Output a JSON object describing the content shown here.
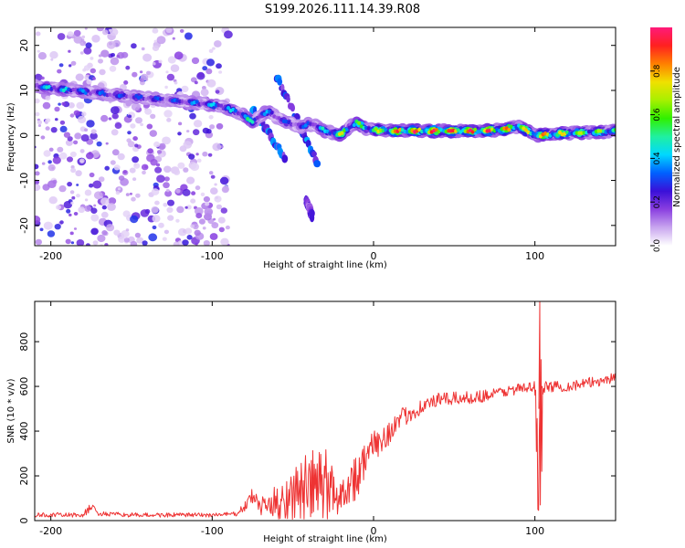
{
  "title": "S199.2026.111.14.39.R08",
  "chart_data": [
    {
      "type": "heatmap",
      "title": "S199.2026.111.14.39.R08",
      "xlabel": "Height of straight line (km)",
      "ylabel": "Frequency (Hz)",
      "xlim": [
        -210,
        150
      ],
      "ylim": [
        -24.5,
        24
      ],
      "x_ticks": [
        -200,
        -100,
        0,
        100
      ],
      "y_ticks": [
        20,
        10,
        0,
        -10,
        -20
      ],
      "colorbar": {
        "label": "Normalized spectral amplitude",
        "range": [
          0,
          1
        ],
        "ticks": [
          0.0,
          0.2,
          0.4,
          0.6,
          0.8
        ],
        "colormap": [
          "#ffffff",
          "#c9a6ef",
          "#8a3fe0",
          "#3a10d8",
          "#0060ff",
          "#00d8ff",
          "#20f0a0",
          "#30f000",
          "#a8f000",
          "#f0e000",
          "#ff8000",
          "#ff2020",
          "#ff1a7a"
        ]
      },
      "ridge": {
        "description": "dominant frequency track (Hz) vs height (km)",
        "x": [
          -210,
          -200,
          -180,
          -160,
          -140,
          -120,
          -100,
          -90,
          -80,
          -75,
          -70,
          -65,
          -60,
          -55,
          -50,
          -45,
          -40,
          -35,
          -30,
          -25,
          -20,
          -15,
          -10,
          -5,
          0,
          10,
          20,
          40,
          60,
          80,
          90,
          95,
          100,
          110,
          120,
          140,
          150
        ],
        "y": [
          11,
          10.5,
          9.8,
          9.0,
          8.3,
          7.6,
          6.8,
          6.0,
          4.5,
          3.0,
          4.5,
          5.5,
          4.0,
          3.0,
          2.5,
          2.0,
          2.5,
          2.0,
          1.0,
          0.5,
          0.2,
          2.0,
          3.0,
          1.5,
          1.2,
          1.0,
          1.0,
          1.0,
          1.0,
          1.2,
          2.0,
          1.0,
          0.0,
          0.2,
          0.5,
          0.8,
          1.0
        ]
      },
      "ridge_amplitude": [
        0.35,
        0.45,
        0.35,
        0.3,
        0.3,
        0.3,
        0.4,
        0.4,
        0.45,
        0.5,
        0.4,
        0.35,
        0.3,
        0.3,
        0.3,
        0.3,
        0.35,
        0.35,
        0.45,
        0.6,
        0.7,
        0.6,
        0.55,
        0.6,
        0.65,
        0.8,
        0.9,
        0.95,
        0.9,
        0.85,
        0.75,
        0.7,
        0.85,
        0.8,
        0.7,
        0.65,
        0.6
      ],
      "branches": [
        {
          "x": [
            -60,
            -35
          ],
          "y": [
            13,
            -6
          ],
          "amplitude": 0.3
        },
        {
          "x": [
            -75,
            -55
          ],
          "y": [
            6,
            -5
          ],
          "amplitude": 0.3
        },
        {
          "x": [
            -42,
            -38
          ],
          "y": [
            -14,
            -18
          ],
          "amplitude": 0.2
        }
      ],
      "noise_region": {
        "x": [
          -210,
          -90
        ],
        "y": [
          -24.5,
          24
        ],
        "amplitude_max": 0.25
      }
    },
    {
      "type": "line",
      "xlabel": "Height of straight line (km)",
      "ylabel": "SNR (10 * v/v)",
      "xlim": [
        -210,
        150
      ],
      "ylim": [
        0,
        980
      ],
      "x_ticks": [
        -200,
        -100,
        0,
        100
      ],
      "y_ticks": [
        0,
        200,
        400,
        600,
        800
      ],
      "color": "#ee3333",
      "envelope": {
        "x": [
          -210,
          -180,
          -175,
          -170,
          -150,
          -100,
          -85,
          -80,
          -75,
          -70,
          -60,
          -50,
          -40,
          -30,
          -25,
          -20,
          -15,
          -10,
          -5,
          0,
          10,
          20,
          30,
          40,
          50,
          60,
          70,
          80,
          90,
          95,
          100,
          102,
          104,
          110,
          120,
          130,
          140,
          150
        ],
        "mean": [
          25,
          25,
          60,
          30,
          25,
          25,
          30,
          60,
          110,
          60,
          80,
          120,
          150,
          160,
          130,
          110,
          170,
          200,
          280,
          330,
          400,
          470,
          510,
          540,
          545,
          550,
          560,
          575,
          590,
          590,
          600,
          300,
          590,
          600,
          600,
          610,
          625,
          640
        ],
        "amplitude": [
          10,
          10,
          25,
          10,
          10,
          10,
          10,
          20,
          40,
          40,
          80,
          120,
          160,
          180,
          120,
          80,
          90,
          110,
          80,
          70,
          60,
          45,
          35,
          30,
          30,
          28,
          28,
          25,
          25,
          25,
          25,
          400,
          30,
          25,
          25,
          25,
          25,
          25
        ]
      },
      "annotations": [
        {
          "x": 103,
          "y_max": 980,
          "y_min": 70,
          "note": "spike near 100 km"
        }
      ]
    }
  ]
}
